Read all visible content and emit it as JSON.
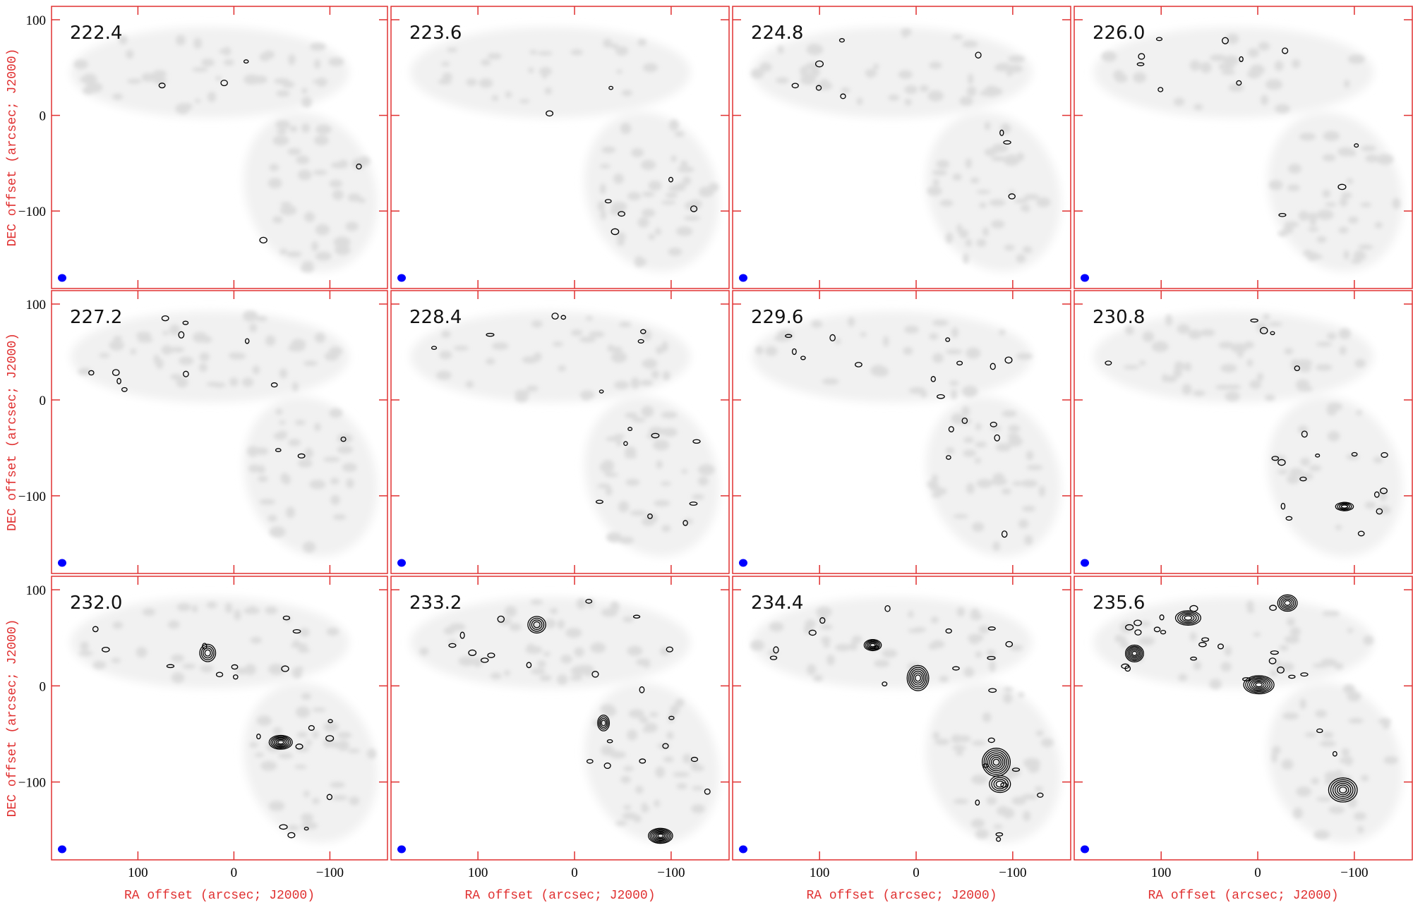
{
  "chart_data": {
    "type": "contour",
    "xlabel": "RA offset (arcsec; J2000)",
    "ylabel": "DEC offset (arcsec; J2000)",
    "xlim": [
      190,
      -160
    ],
    "ylim": [
      -181,
      114
    ],
    "xticks": [
      100,
      0,
      {
        "value": -100,
        "label": "−100"
      }
    ],
    "yticks": [
      100,
      0,
      {
        "value": -100,
        "label": "−100"
      }
    ],
    "frame_color": "#e03030",
    "beam_color": "#0000ff",
    "panels": [
      "222.4",
      "223.6",
      "224.8",
      "226.0",
      "227.2",
      "228.4",
      "229.6",
      "230.8",
      "232.0",
      "233.2",
      "234.4",
      "235.6"
    ]
  }
}
